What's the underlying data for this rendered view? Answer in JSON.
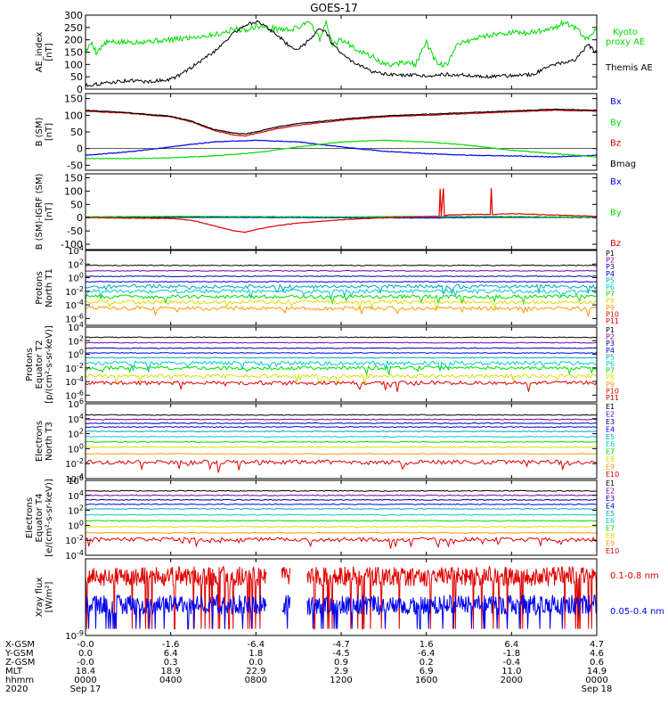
{
  "title": "GOES-17",
  "colors": {
    "black": "#000000",
    "red": "#e00000",
    "green": "#00dd00",
    "blue": "#0000ee",
    "yellow": "#dddd00",
    "orange": "#ff9900",
    "cyan": "#00cccc",
    "purple": "#7700aa",
    "navy": "#000099",
    "teal": "#00aaaa"
  },
  "time_axis": {
    "tick_hours": [
      0,
      4,
      8,
      12,
      16,
      20,
      24
    ],
    "ephemeris": [
      {
        "label": "X-GSM",
        "values": [
          "-0.0",
          "-1.6",
          "-6.4",
          "-4.7",
          "1.6",
          "6.4",
          "4.7"
        ]
      },
      {
        "label": "Y-GSM",
        "values": [
          "0.0",
          "6.4",
          "1.8",
          "-4.5",
          "-6.4",
          "-1.8",
          "4.6"
        ]
      },
      {
        "label": "Z-GSM",
        "values": [
          "-0.0",
          "0.3",
          "0.0",
          "0.9",
          "0.2",
          "-0.4",
          "0.6"
        ]
      },
      {
        "label": "MLT",
        "values": [
          "18.4",
          "18.9",
          "22.9",
          "2.9",
          "6.9",
          "11.0",
          "14.9"
        ]
      },
      {
        "label": "hhmm",
        "values": [
          "0000",
          "0400",
          "0800",
          "1200",
          "1600",
          "2000",
          "0000"
        ]
      },
      {
        "label": "2020",
        "values": [
          "Sep 17",
          "",
          "",
          "",
          "",
          "",
          "Sep 18"
        ]
      }
    ]
  },
  "chart_data": [
    {
      "type": "line",
      "id": "ae",
      "ylabel": [
        "AE_index",
        "[nT]"
      ],
      "ylim": [
        0,
        300
      ],
      "yscale": "linear",
      "yticks": [
        0,
        50,
        100,
        150,
        200,
        250,
        300
      ],
      "series": [
        {
          "name": "Kyoto proxy AE",
          "color": "green",
          "x": [
            0,
            0.3,
            0.5,
            1,
            2,
            3,
            4,
            5,
            6,
            6.5,
            7,
            7.5,
            8,
            8.5,
            9,
            9.5,
            10,
            10.5,
            11,
            11.3,
            11.6,
            12,
            12.5,
            13,
            13.5,
            14,
            14.5,
            15,
            15.5,
            16,
            16.5,
            17,
            17.5,
            18,
            18.5,
            19,
            19.5,
            20,
            20.5,
            21,
            21.5,
            22,
            22.5,
            23,
            23.5,
            24
          ],
          "y": [
            150,
            190,
            150,
            190,
            190,
            195,
            200,
            210,
            220,
            230,
            245,
            240,
            255,
            250,
            245,
            240,
            250,
            280,
            200,
            270,
            180,
            200,
            175,
            150,
            130,
            100,
            100,
            110,
            100,
            190,
            100,
            100,
            190,
            195,
            210,
            220,
            225,
            230,
            225,
            230,
            240,
            250,
            270,
            250,
            200,
            240
          ]
        },
        {
          "name": "Themis AE",
          "color": "black",
          "x": [
            0,
            0.5,
            1,
            1.5,
            2,
            3,
            4,
            4.5,
            5,
            5.5,
            6,
            6.5,
            7,
            7.5,
            8,
            8.5,
            9,
            9.5,
            10,
            10.5,
            11,
            11.3,
            11.6,
            12,
            12.5,
            13,
            13.5,
            14,
            15,
            16,
            17,
            18,
            19,
            20,
            21,
            21.5,
            22,
            22.5,
            23,
            23.3,
            23.6,
            24
          ],
          "y": [
            15,
            20,
            25,
            30,
            35,
            30,
            40,
            60,
            90,
            120,
            150,
            190,
            230,
            260,
            275,
            250,
            220,
            180,
            160,
            200,
            250,
            230,
            180,
            150,
            110,
            90,
            70,
            60,
            55,
            55,
            60,
            55,
            50,
            55,
            60,
            80,
            100,
            110,
            120,
            150,
            180,
            145
          ]
        }
      ]
    },
    {
      "type": "line",
      "id": "bsm",
      "ylabel": [
        "B (SM)",
        "[nT]"
      ],
      "ylim": [
        -65,
        165
      ],
      "yscale": "linear",
      "yticks": [
        -50,
        0,
        50,
        100,
        150
      ],
      "series": [
        {
          "name": "Bx",
          "color": "blue",
          "x": [
            0,
            2,
            4,
            6,
            8,
            10,
            12,
            14,
            16,
            18,
            20,
            22,
            24
          ],
          "y": [
            -20,
            -10,
            5,
            20,
            25,
            20,
            5,
            -8,
            -15,
            -20,
            -22,
            -25,
            -20
          ]
        },
        {
          "name": "By",
          "color": "green",
          "x": [
            0,
            2,
            4,
            6,
            8,
            10,
            12,
            14,
            16,
            18,
            20,
            22,
            24
          ],
          "y": [
            -30,
            -30,
            -28,
            -22,
            -12,
            5,
            20,
            25,
            20,
            10,
            -5,
            -15,
            -25
          ]
        },
        {
          "name": "Bz",
          "color": "red",
          "x": [
            0,
            2,
            4,
            5,
            6,
            7,
            7.5,
            8,
            9,
            10,
            12,
            14,
            16,
            18,
            20,
            22,
            24
          ],
          "y": [
            112,
            106,
            95,
            80,
            55,
            40,
            38,
            45,
            60,
            70,
            85,
            95,
            100,
            105,
            110,
            115,
            112
          ]
        },
        {
          "name": "Bmag",
          "color": "black",
          "x": [
            0,
            2,
            4,
            5,
            6,
            7,
            7.5,
            8,
            9,
            10,
            12,
            14,
            16,
            18,
            20,
            22,
            24
          ],
          "y": [
            115,
            108,
            97,
            82,
            58,
            46,
            44,
            50,
            65,
            75,
            88,
            98,
            103,
            108,
            113,
            118,
            115
          ]
        }
      ]
    },
    {
      "type": "line",
      "id": "bdiff",
      "ylabel": [
        "B (SM)-IGRF (SM)",
        "[nT]"
      ],
      "ylim": [
        -120,
        165
      ],
      "yscale": "linear",
      "yticks": [
        -100,
        -50,
        0,
        50,
        100,
        150
      ],
      "series": [
        {
          "name": "Bx",
          "color": "blue",
          "x": [
            0,
            4,
            8,
            12,
            16,
            20,
            24
          ],
          "y": [
            2,
            3,
            1,
            0,
            -1,
            2,
            1
          ]
        },
        {
          "name": "By",
          "color": "green",
          "x": [
            0,
            4,
            8,
            12,
            16,
            20,
            24
          ],
          "y": [
            3,
            5,
            4,
            3,
            5,
            4,
            2
          ]
        },
        {
          "name": "Bz",
          "color": "red",
          "x": [
            0,
            4,
            5,
            6,
            7,
            7.5,
            8,
            9,
            10,
            12,
            14,
            16.6,
            16.65,
            16.7,
            16.8,
            16.85,
            16.9,
            17,
            18,
            19,
            19.05,
            19.1,
            20,
            22,
            24
          ],
          "y": [
            0,
            -3,
            -10,
            -30,
            -50,
            -55,
            -45,
            -30,
            -20,
            -8,
            0,
            5,
            110,
            5,
            110,
            5,
            8,
            10,
            12,
            12,
            110,
            12,
            15,
            10,
            5
          ]
        }
      ]
    },
    {
      "type": "line",
      "id": "p_north",
      "ylabel": [
        "Protons",
        "North T1"
      ],
      "ylim": [
        -7,
        4
      ],
      "yscale": "log10",
      "ytick_labels": [
        "10^4",
        "10^2",
        "10^0",
        "10^-2",
        "10^-4",
        "10^-6"
      ],
      "series": [
        {
          "name": "P1",
          "color": "black",
          "level": 1.8
        },
        {
          "name": "P2",
          "color": "purple",
          "level": 1.0
        },
        {
          "name": "P3",
          "color": "navy",
          "level": 0.2
        },
        {
          "name": "P4",
          "color": "blue",
          "level": -0.6
        },
        {
          "name": "P5",
          "color": "teal",
          "level": -1.3
        },
        {
          "name": "P6",
          "color": "cyan",
          "level": -2.0
        },
        {
          "name": "P7",
          "color": "green",
          "level": -2.8
        },
        {
          "name": "P8",
          "color": "yellow",
          "level": -3.6
        },
        {
          "name": "P9",
          "color": "orange",
          "level": -4.5
        },
        {
          "name": "P10",
          "color": "red",
          "level": -99
        },
        {
          "name": "P11",
          "color": "red",
          "level": -99
        }
      ]
    },
    {
      "type": "line",
      "id": "p_eq",
      "ylabel": [
        "Protons",
        "Equator T2",
        "[p/(cm²-s-sr-keV)]"
      ],
      "ylim": [
        -7,
        4
      ],
      "yscale": "log10",
      "ytick_labels": [
        "10^4",
        "10^2",
        "10^0",
        "10^-2",
        "10^-4",
        "10^-6"
      ],
      "series": [
        {
          "name": "P1",
          "color": "black",
          "level": 2.5
        },
        {
          "name": "P2",
          "color": "purple",
          "level": 1.7
        },
        {
          "name": "P3",
          "color": "navy",
          "level": 0.9
        },
        {
          "name": "P4",
          "color": "blue",
          "level": 0.2
        },
        {
          "name": "P5",
          "color": "teal",
          "level": -0.5
        },
        {
          "name": "P6",
          "color": "cyan",
          "level": -1.3
        },
        {
          "name": "P7",
          "color": "green",
          "level": -2.0
        },
        {
          "name": "P8",
          "color": "yellow",
          "level": -3.2
        },
        {
          "name": "P9",
          "color": "orange",
          "level": -99
        },
        {
          "name": "P10",
          "color": "red",
          "level": -4.2
        },
        {
          "name": "P11",
          "color": "red",
          "level": -99
        }
      ]
    },
    {
      "type": "line",
      "id": "e_north",
      "ylabel": [
        "Electrons",
        "North T3"
      ],
      "ylim": [
        -4,
        6
      ],
      "yscale": "log10",
      "ytick_labels": [
        "10^6",
        "10^4",
        "10^2",
        "10^0",
        "10^-2",
        "10^-4"
      ],
      "series": [
        {
          "name": "E1",
          "color": "black",
          "level": 4.5
        },
        {
          "name": "E2",
          "color": "purple",
          "level": 3.9
        },
        {
          "name": "E3",
          "color": "navy",
          "level": 3.4
        },
        {
          "name": "E4",
          "color": "blue",
          "level": 2.9
        },
        {
          "name": "E5",
          "color": "teal",
          "level": 2.3
        },
        {
          "name": "E6",
          "color": "cyan",
          "level": 1.6
        },
        {
          "name": "E7",
          "color": "green",
          "level": 0.9
        },
        {
          "name": "E8",
          "color": "yellow",
          "level": 0.2
        },
        {
          "name": "E9",
          "color": "orange",
          "level": -0.7
        },
        {
          "name": "E10",
          "color": "red",
          "level": -1.8
        }
      ]
    },
    {
      "type": "line",
      "id": "e_eq",
      "ylabel": [
        "Electrons",
        "Equator T4",
        "[e/(cm²-s-sr-keV)]"
      ],
      "ylim": [
        -4,
        6
      ],
      "yscale": "log10",
      "ytick_labels": [
        "10^6",
        "10^4",
        "10^2",
        "10^0",
        "10^-2",
        "10^-4"
      ],
      "series": [
        {
          "name": "E1",
          "color": "black",
          "level": 4.6
        },
        {
          "name": "E2",
          "color": "purple",
          "level": 4.0
        },
        {
          "name": "E3",
          "color": "navy",
          "level": 3.4
        },
        {
          "name": "E4",
          "color": "blue",
          "level": 2.8
        },
        {
          "name": "E5",
          "color": "teal",
          "level": 2.2
        },
        {
          "name": "E6",
          "color": "cyan",
          "level": 1.4
        },
        {
          "name": "E7",
          "color": "green",
          "level": 0.6
        },
        {
          "name": "E8",
          "color": "yellow",
          "level": -0.2
        },
        {
          "name": "E9",
          "color": "orange",
          "level": -1.0
        },
        {
          "name": "E10",
          "color": "red",
          "level": -1.9
        }
      ]
    },
    {
      "type": "line",
      "id": "xray",
      "ylabel": [
        "Xray flux",
        "[W/m²]"
      ],
      "ylim": [
        -9,
        -5.5
      ],
      "yscale": "log10",
      "ytick_labels": [
        "10^-9"
      ],
      "series": [
        {
          "name": "0.1-0.8 nm",
          "color": "red",
          "level": -6.3,
          "gaps": [
            [
              8.5,
              9.2
            ],
            [
              9.6,
              10.4
            ]
          ]
        },
        {
          "name": "0.05-0.4 nm",
          "color": "blue",
          "level": -7.6,
          "gaps": [
            [
              8.5,
              9.2
            ],
            [
              9.6,
              10.4
            ]
          ]
        }
      ]
    }
  ]
}
